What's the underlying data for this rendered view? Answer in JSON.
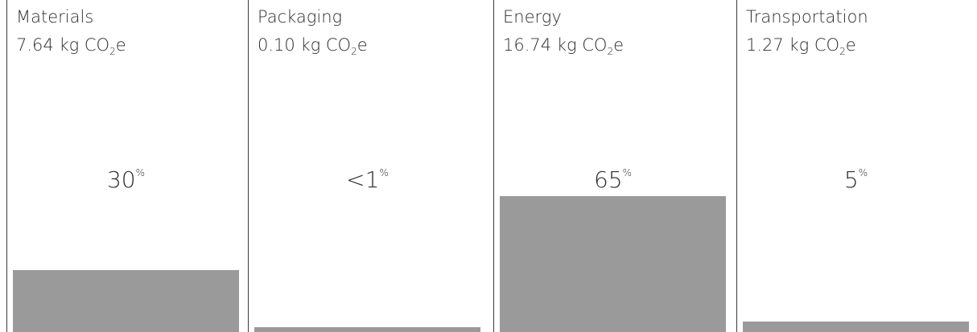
{
  "colors": {
    "bar": "#9a9a9a",
    "divider": "#3a3a3a",
    "text": "#2e2e2e"
  },
  "chart_data": {
    "type": "bar",
    "title": "",
    "xlabel": "",
    "ylabel": "",
    "unit_prefix": "kg CO",
    "unit_sub": "2",
    "unit_suffix": "e",
    "percent_symbol": "%",
    "categories": [
      "Materials",
      "Packaging",
      "Energy",
      "Transportation"
    ],
    "values": [
      7.64,
      0.1,
      16.74,
      1.27
    ],
    "value_labels": [
      "7.64",
      "0.10",
      "16.74",
      "1.27"
    ],
    "percent_labels": [
      "30",
      "<1",
      "65",
      "5"
    ],
    "ylim": [
      0,
      16.74
    ],
    "grid": false,
    "legend": "none"
  }
}
